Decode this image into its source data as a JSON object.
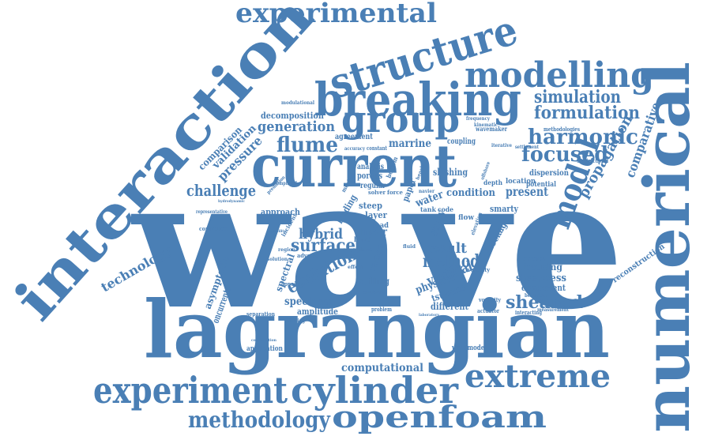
{
  "color": "#4a7fb5",
  "words": [
    {
      "id": "wave",
      "text": "wave"
    },
    {
      "id": "lagrangian",
      "text": "lagrangian"
    },
    {
      "id": "numerical",
      "text": "numerical"
    },
    {
      "id": "interaction",
      "text": "interaction"
    },
    {
      "id": "current",
      "text": "current"
    },
    {
      "id": "breaking",
      "text": "breaking"
    },
    {
      "id": "structure",
      "text": "structure"
    },
    {
      "id": "experimental",
      "text": "experimental"
    },
    {
      "id": "modelling",
      "text": "modelling"
    },
    {
      "id": "group",
      "text": "group"
    },
    {
      "id": "experiment",
      "text": "experiment"
    },
    {
      "id": "cylinder",
      "text": "cylinder"
    },
    {
      "id": "extreme",
      "text": "extreme"
    },
    {
      "id": "openfoam",
      "text": "openfoam"
    },
    {
      "id": "methodology",
      "text": "methodology"
    },
    {
      "id": "model",
      "text": "model"
    },
    {
      "id": "harmonic",
      "text": "harmonic"
    },
    {
      "id": "focused",
      "text": "focused"
    },
    {
      "id": "simulation",
      "text": "simulation"
    },
    {
      "id": "formulation",
      "text": "formulation"
    },
    {
      "id": "flume",
      "text": "flume"
    },
    {
      "id": "generation",
      "text": "generation"
    },
    {
      "id": "challenge",
      "text": "challenge"
    },
    {
      "id": "sheared",
      "text": "sheared"
    },
    {
      "id": "surface",
      "text": "surface"
    },
    {
      "id": "method",
      "text": "method"
    },
    {
      "id": "result",
      "text": "result"
    },
    {
      "id": "evolution",
      "text": "evolution"
    },
    {
      "id": "propagation",
      "text": "propagation"
    },
    {
      "id": "comparative",
      "text": "comparative"
    },
    {
      "id": "technology",
      "text": "technology"
    },
    {
      "id": "pressure",
      "text": "pressure"
    },
    {
      "id": "validation",
      "text": "validation"
    },
    {
      "id": "comparison",
      "text": "comparison"
    },
    {
      "id": "computational",
      "text": "computational"
    },
    {
      "id": "steepness",
      "text": "steepness"
    },
    {
      "id": "vertical",
      "text": "vertical"
    },
    {
      "id": "hybrid",
      "text": "hybrid"
    },
    {
      "id": "spectrum",
      "text": "spectrum"
    },
    {
      "id": "condition",
      "text": "condition"
    },
    {
      "id": "present",
      "text": "present"
    },
    {
      "id": "focusing",
      "text": "focusing"
    },
    {
      "id": "component",
      "text": "component"
    },
    {
      "id": "different",
      "text": "different"
    },
    {
      "id": "approach",
      "text": "approach"
    },
    {
      "id": "asymptotic",
      "text": "asymptotic"
    },
    {
      "id": "reconstruction",
      "text": "reconstruction"
    },
    {
      "id": "decomposition",
      "text": "decomposition"
    },
    {
      "id": "marrine",
      "text": "marrine"
    },
    {
      "id": "agreement",
      "text": "agreement"
    },
    {
      "id": "sloshing",
      "text": "sloshing"
    },
    {
      "id": "dispersion",
      "text": "dispersion"
    },
    {
      "id": "potential",
      "text": "potential"
    },
    {
      "id": "location",
      "text": "location"
    },
    {
      "id": "blockage",
      "text": "blockage"
    },
    {
      "id": "spilling",
      "text": "spilling"
    },
    {
      "id": "physical",
      "text": "physical"
    },
    {
      "id": "tsunami",
      "text": "tsunami"
    },
    {
      "id": "spectral",
      "text": "spectral"
    },
    {
      "id": "amplitude",
      "text": "amplitude"
    },
    {
      "id": "study",
      "text": "study"
    },
    {
      "id": "linear",
      "text": "linear"
    },
    {
      "id": "range",
      "text": "range"
    },
    {
      "id": "water",
      "text": "water"
    },
    {
      "id": "loading",
      "text": "loading"
    },
    {
      "id": "paper",
      "text": "paper"
    },
    {
      "id": "smarty",
      "text": "smarty"
    },
    {
      "id": "steep",
      "text": "steep"
    },
    {
      "id": "layer",
      "text": "layer"
    },
    {
      "id": "porous",
      "text": "porous"
    },
    {
      "id": "analysis",
      "text": "analysis"
    },
    {
      "id": "regular",
      "text": "regular"
    },
    {
      "id": "coupling",
      "text": "coupling"
    },
    {
      "id": "wavemaker",
      "text": "wavemaker"
    },
    {
      "id": "methodologies",
      "text": "methodologies"
    },
    {
      "id": "unidirectional",
      "text": "unidirectional"
    },
    {
      "id": "settlement",
      "text": "settlement"
    },
    {
      "id": "application",
      "text": "application"
    },
    {
      "id": "controlled",
      "text": "controlled"
    },
    {
      "id": "wavemodel",
      "text": "wavemodel"
    },
    {
      "id": "separation",
      "text": "separation"
    },
    {
      "id": "modulational",
      "text": "modulational"
    },
    {
      "id": "frequency",
      "text": "frequency"
    },
    {
      "id": "kinematic",
      "text": "kinematic"
    },
    {
      "id": "incident",
      "text": "incident"
    },
    {
      "id": "constant",
      "text": "constant"
    },
    {
      "id": "accuracy",
      "text": "accuracy"
    },
    {
      "id": "opposing",
      "text": "opposing"
    },
    {
      "id": "uniform",
      "text": "uniform"
    },
    {
      "id": "problem",
      "text": "problem"
    },
    {
      "id": "velocity",
      "text": "velocity"
    },
    {
      "id": "vorticity",
      "text": "vorticity"
    },
    {
      "id": "actuator",
      "text": "actuator"
    },
    {
      "id": "interacting",
      "text": "interacting"
    },
    {
      "id": "measurement",
      "text": "measurement"
    },
    {
      "id": "behaviour",
      "text": "behaviour"
    },
    {
      "id": "direction",
      "text": "direction"
    },
    {
      "id": "iterative",
      "text": "iterative"
    },
    {
      "id": "representative",
      "text": "representative"
    },
    {
      "id": "oncurrents",
      "text": "oncurrents"
    },
    {
      "id": "tank",
      "text": "tank"
    },
    {
      "id": "code",
      "text": "code"
    },
    {
      "id": "load",
      "text": "load"
    },
    {
      "id": "flow",
      "text": "flow"
    },
    {
      "id": "blind",
      "text": "blind"
    },
    {
      "id": "depth",
      "text": "depth"
    },
    {
      "id": "solver",
      "text": "solver"
    },
    {
      "id": "force",
      "text": "force"
    },
    {
      "id": "bottom",
      "text": "bottom"
    },
    {
      "id": "moving",
      "text": "moving"
    },
    {
      "id": "navier",
      "text": "navier"
    },
    {
      "id": "fluid",
      "text": "fluid"
    },
    {
      "id": "effect",
      "text": "effect"
    },
    {
      "id": "adverse",
      "text": "adverse"
    },
    {
      "id": "plane",
      "text": "plane"
    },
    {
      "id": "region",
      "text": "region"
    },
    {
      "id": "solution",
      "text": "solution"
    },
    {
      "id": "prediction",
      "text": "prediction"
    },
    {
      "id": "empirical",
      "text": "empirical"
    },
    {
      "id": "hydrodynamic",
      "text": "hydrodynamic"
    },
    {
      "id": "piercing",
      "text": "piercing"
    },
    {
      "id": "combination",
      "text": "combination"
    },
    {
      "id": "elevation",
      "text": "elevation"
    },
    {
      "id": "beach",
      "text": "beach"
    },
    {
      "id": "offshore",
      "text": "offshore"
    },
    {
      "id": "capability",
      "text": "capability"
    },
    {
      "id": "laboratory",
      "text": "laboratory"
    }
  ]
}
